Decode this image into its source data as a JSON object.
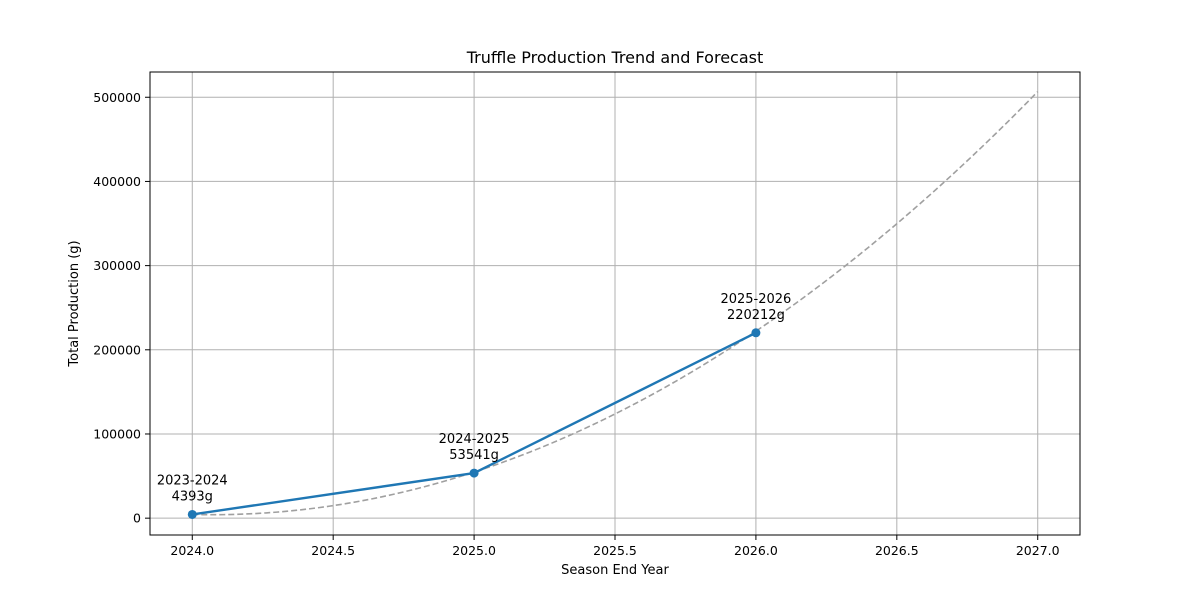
{
  "chart_data": {
    "type": "line",
    "title": "Truffle Production Trend and Forecast",
    "xlabel": "Season End Year",
    "ylabel": "Total Production (g)",
    "xlim": [
      2023.85,
      2027.15
    ],
    "ylim": [
      -20000,
      530000
    ],
    "xticks": [
      2024.0,
      2024.5,
      2025.0,
      2025.5,
      2026.0,
      2026.5,
      2027.0
    ],
    "xtick_labels": [
      "2024.0",
      "2024.5",
      "2025.0",
      "2025.5",
      "2026.0",
      "2026.5",
      "2027.0"
    ],
    "yticks": [
      0,
      100000,
      200000,
      300000,
      400000,
      500000
    ],
    "ytick_labels": [
      "0",
      "100000",
      "200000",
      "300000",
      "400000",
      "500000"
    ],
    "grid": true,
    "series": [
      {
        "style": "solid-with-markers",
        "color": "#1f77b4",
        "x": [
          2024,
          2025,
          2026
        ],
        "y": [
          4393,
          53541,
          220212
        ],
        "labels": [
          [
            "2023-2024",
            "4393g"
          ],
          [
            "2024-2025",
            "53541g"
          ],
          [
            "2025-2026",
            "220212g"
          ]
        ]
      },
      {
        "style": "dashed",
        "color": "#a0a0a0",
        "x_range": [
          2024,
          2027
        ],
        "quadratic": {
          "a": 58561.5,
          "b": -8263,
          "c": 4393
        }
      }
    ]
  }
}
